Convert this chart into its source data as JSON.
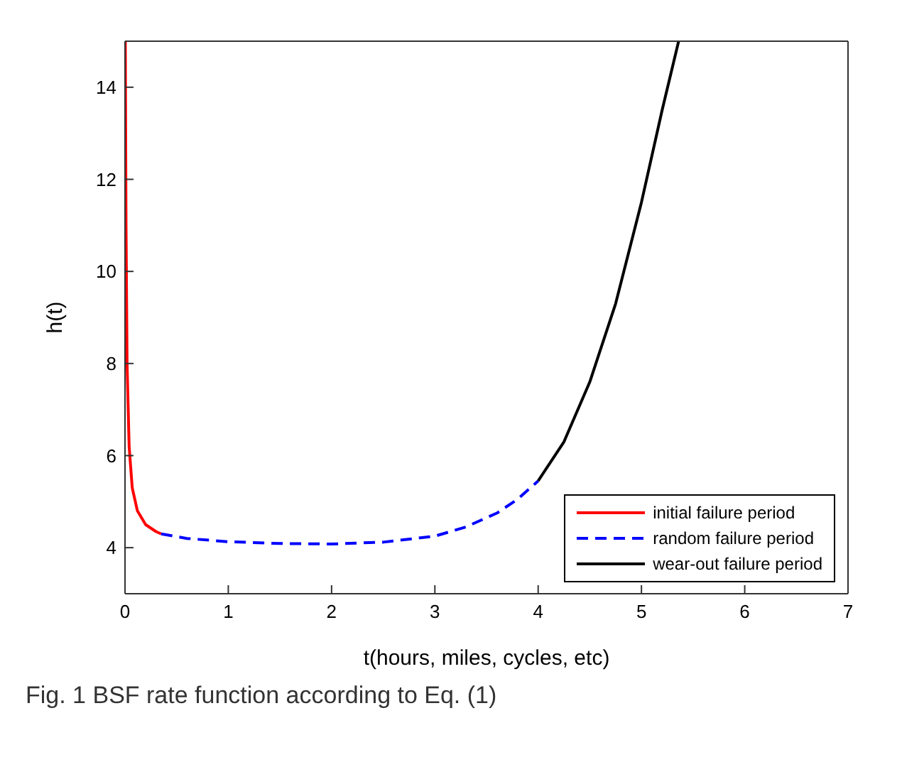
{
  "chart_data": {
    "type": "line",
    "xlabel": "t(hours, miles, cycles, etc)",
    "ylabel": "h(t)",
    "annotations": [
      "Fig. 1 BSF rate function according to Eq. (1)"
    ],
    "xlim": [
      0,
      7
    ],
    "xticks": [
      0,
      1,
      2,
      3,
      4,
      5,
      6,
      7
    ],
    "ylim": [
      3,
      15
    ],
    "yticks": [
      4,
      6,
      8,
      10,
      12,
      14
    ],
    "legend": "bottom right",
    "marker": "none",
    "series": [
      {
        "name": "initial failure period",
        "color": "#ff0000",
        "line_style": "solid",
        "x": [
          0.003,
          0.01,
          0.02,
          0.04,
          0.07,
          0.12,
          0.2,
          0.3,
          0.35
        ],
        "values": [
          15,
          11,
          8,
          6.2,
          5.3,
          4.8,
          4.5,
          4.35,
          4.3
        ]
      },
      {
        "name": "random failure period",
        "color": "#0000ff",
        "line_style": "dashed",
        "x": [
          0.35,
          0.6,
          1.0,
          1.5,
          2.0,
          2.5,
          3.0,
          3.3,
          3.6,
          3.8,
          4.0
        ],
        "values": [
          4.3,
          4.2,
          4.13,
          4.09,
          4.08,
          4.12,
          4.25,
          4.45,
          4.75,
          5.05,
          5.45
        ]
      },
      {
        "name": "wear-out failure period",
        "color": "#000000",
        "line_style": "solid",
        "x": [
          4.0,
          4.25,
          4.5,
          4.75,
          5.0,
          5.2,
          5.36
        ],
        "values": [
          5.45,
          6.3,
          7.6,
          9.3,
          11.5,
          13.5,
          15
        ]
      }
    ]
  }
}
